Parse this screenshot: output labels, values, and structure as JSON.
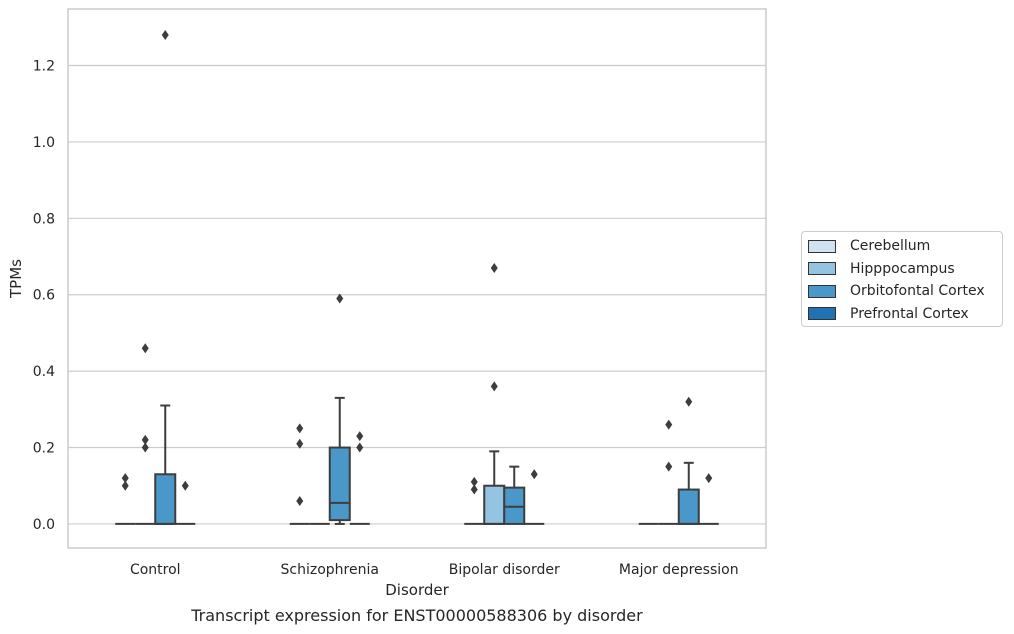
{
  "chart_data": {
    "type": "box",
    "title": "",
    "xlabel": "Disorder",
    "ylabel": "TPMs",
    "ylim": [
      -0.063,
      1.348
    ],
    "yticks": [
      0.0,
      0.2,
      0.4,
      0.6,
      0.8,
      1.0,
      1.2
    ],
    "ytick_labels": [
      "0.0",
      "0.2",
      "0.4",
      "0.6",
      "0.8",
      "1.0",
      "1.2"
    ],
    "grid": "horizontal",
    "legend_position": "right",
    "categories": [
      "Control",
      "Schizophrenia",
      "Bipolar disorder",
      "Major depression"
    ],
    "series": [
      {
        "name": "Cerebellum",
        "color": "#d0e1f2",
        "boxes": [
          {
            "category": "Control",
            "whisker_low": 0.0,
            "q1": 0.0,
            "median": 0.0,
            "q3": 0.0,
            "whisker_high": 0.0,
            "outliers": [
              0.1,
              0.12
            ]
          },
          {
            "category": "Schizophrenia",
            "whisker_low": 0.0,
            "q1": 0.0,
            "median": 0.0,
            "q3": 0.0,
            "whisker_high": 0.0,
            "outliers": [
              0.06,
              0.21,
              0.25
            ]
          },
          {
            "category": "Bipolar disorder",
            "whisker_low": 0.0,
            "q1": 0.0,
            "median": 0.0,
            "q3": 0.0,
            "whisker_high": 0.0,
            "outliers": [
              0.09,
              0.11
            ]
          },
          {
            "category": "Major depression",
            "whisker_low": 0.0,
            "q1": 0.0,
            "median": 0.0,
            "q3": 0.0,
            "whisker_high": 0.0,
            "outliers": []
          }
        ]
      },
      {
        "name": "Hipppocampus",
        "color": "#94c4df",
        "boxes": [
          {
            "category": "Control",
            "whisker_low": 0.0,
            "q1": 0.0,
            "median": 0.0,
            "q3": 0.0,
            "whisker_high": 0.0,
            "outliers": [
              0.2,
              0.22,
              0.46
            ]
          },
          {
            "category": "Schizophrenia",
            "whisker_low": 0.0,
            "q1": 0.0,
            "median": 0.0,
            "q3": 0.0,
            "whisker_high": 0.0,
            "outliers": []
          },
          {
            "category": "Bipolar disorder",
            "whisker_low": 0.0,
            "q1": 0.0,
            "median": 0.0,
            "q3": 0.1,
            "whisker_high": 0.19,
            "outliers": [
              0.36,
              0.67
            ]
          },
          {
            "category": "Major depression",
            "whisker_low": 0.0,
            "q1": 0.0,
            "median": 0.0,
            "q3": 0.0,
            "whisker_high": 0.0,
            "outliers": [
              0.15,
              0.26
            ]
          }
        ]
      },
      {
        "name": "Orbitofontal Cortex",
        "color": "#4a98c9",
        "boxes": [
          {
            "category": "Control",
            "whisker_low": 0.0,
            "q1": 0.0,
            "median": 0.0,
            "q3": 0.13,
            "whisker_high": 0.31,
            "outliers": [
              1.28
            ]
          },
          {
            "category": "Schizophrenia",
            "whisker_low": 0.0,
            "q1": 0.01,
            "median": 0.055,
            "q3": 0.2,
            "whisker_high": 0.33,
            "outliers": [
              0.59
            ]
          },
          {
            "category": "Bipolar disorder",
            "whisker_low": 0.0,
            "q1": 0.0,
            "median": 0.045,
            "q3": 0.095,
            "whisker_high": 0.15,
            "outliers": []
          },
          {
            "category": "Major depression",
            "whisker_low": 0.0,
            "q1": 0.0,
            "median": 0.0,
            "q3": 0.09,
            "whisker_high": 0.16,
            "outliers": [
              0.32
            ]
          }
        ]
      },
      {
        "name": "Prefrontal Cortex",
        "color": "#2171b5",
        "boxes": [
          {
            "category": "Control",
            "whisker_low": 0.0,
            "q1": 0.0,
            "median": 0.0,
            "q3": 0.0,
            "whisker_high": 0.0,
            "outliers": [
              0.1
            ]
          },
          {
            "category": "Schizophrenia",
            "whisker_low": 0.0,
            "q1": 0.0,
            "median": 0.0,
            "q3": 0.0,
            "whisker_high": 0.0,
            "outliers": [
              0.2,
              0.23
            ]
          },
          {
            "category": "Bipolar disorder",
            "whisker_low": 0.0,
            "q1": 0.0,
            "median": 0.0,
            "q3": 0.0,
            "whisker_high": 0.0,
            "outliers": [
              0.13
            ]
          },
          {
            "category": "Major depression",
            "whisker_low": 0.0,
            "q1": 0.0,
            "median": 0.0,
            "q3": 0.0,
            "whisker_high": 0.0,
            "outliers": [
              0.12
            ]
          }
        ]
      }
    ],
    "caption": "Transcript expression for ENST00000588306 by disorder"
  }
}
